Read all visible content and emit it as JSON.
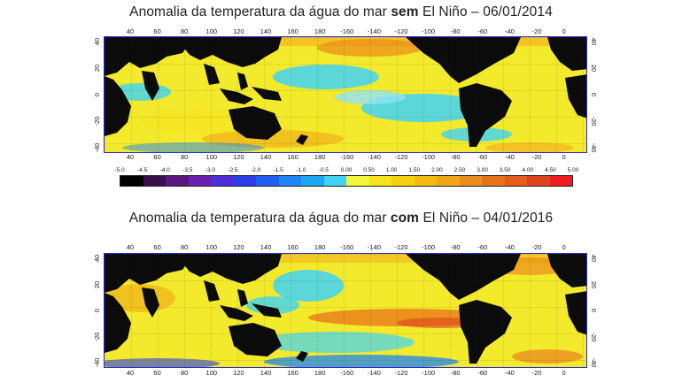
{
  "maps": [
    {
      "id": "top",
      "title_prefix": "Anomalia da temperatura da água do mar ",
      "title_bold": "sem",
      "title_suffix": " El Niño – 06/01/2014"
    },
    {
      "id": "bottom",
      "title_prefix": "Anomalia da temperatura da água do mar ",
      "title_bold": "com",
      "title_suffix": " El Niño – 04/01/2016"
    }
  ],
  "axis": {
    "longitude_ticks": [
      "40",
      "60",
      "80",
      "100",
      "120",
      "140",
      "160",
      "180",
      "-160",
      "-140",
      "-120",
      "-100",
      "-80",
      "-60",
      "-40",
      "-20",
      "0"
    ],
    "latitude_ticks": [
      "40",
      "20",
      "0",
      "-20",
      "-40"
    ]
  },
  "color_scale": {
    "labels": [
      "-5.0",
      "-4.5",
      "-4.0",
      "-3.5",
      "-3.0",
      "-2.5",
      "-2.0",
      "-1.5",
      "-1.0",
      "-0.5",
      "0.00",
      "0.50",
      "1.00",
      "1.50",
      "2.00",
      "2.50",
      "3.00",
      "3.50",
      "4.00",
      "4.50",
      "5.00"
    ],
    "colors": [
      "#000000",
      "#3a0e4a",
      "#5b1680",
      "#6a1fb0",
      "#4a2fd8",
      "#2c3de8",
      "#1f5ff2",
      "#1e86f4",
      "#1aa8ee",
      "#3fd4f6",
      "#f2f63a",
      "#f6e31c",
      "#f6d20e",
      "#f3bb12",
      "#f0a616",
      "#ec8c1a",
      "#e9721a",
      "#e55c1c",
      "#e1421e",
      "#f01c20"
    ]
  }
}
